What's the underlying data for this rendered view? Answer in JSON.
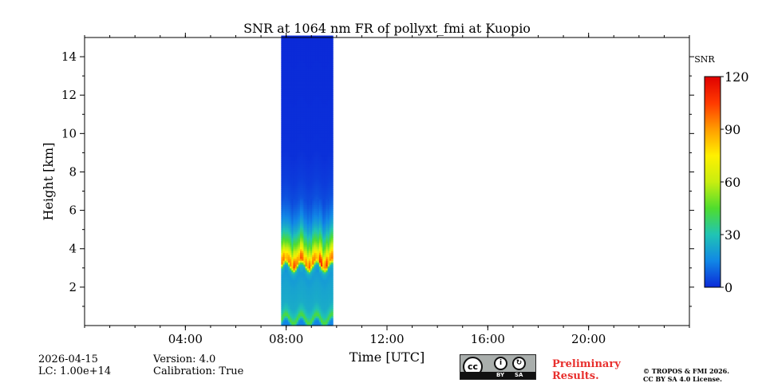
{
  "chart_data": {
    "type": "heatmap",
    "title": "SNR at 1064 nm FR of pollyxt_fmi at Kuopio",
    "xlabel": "Time [UTC]",
    "ylabel": "Height [km]",
    "x_unit": "hours UTC",
    "xlim": [
      0,
      24
    ],
    "ylim": [
      0,
      15
    ],
    "x_ticks": [
      {
        "value": 4,
        "label": "04:00"
      },
      {
        "value": 8,
        "label": "08:00"
      },
      {
        "value": 12,
        "label": "12:00"
      },
      {
        "value": 16,
        "label": "16:00"
      },
      {
        "value": 20,
        "label": "20:00"
      }
    ],
    "y_ticks": [
      {
        "value": 2,
        "label": "2"
      },
      {
        "value": 4,
        "label": "4"
      },
      {
        "value": 6,
        "label": "6"
      },
      {
        "value": 8,
        "label": "8"
      },
      {
        "value": 10,
        "label": "10"
      },
      {
        "value": 12,
        "label": "12"
      },
      {
        "value": 14,
        "label": "14"
      }
    ],
    "data_window": {
      "start_hour": 7.8,
      "end_hour": 9.85
    },
    "colorbar": {
      "label": "SNR",
      "range": [
        0,
        120
      ],
      "ticks": [
        {
          "value": 0,
          "label": "0"
        },
        {
          "value": 30,
          "label": "30"
        },
        {
          "value": 60,
          "label": "60"
        },
        {
          "value": 90,
          "label": "90"
        },
        {
          "value": 120,
          "label": "120"
        }
      ],
      "colormap": [
        "#0b2ad8",
        "#1187e6",
        "#20c4b4",
        "#4fdd2e",
        "#c8ee10",
        "#fff000",
        "#ff9d00",
        "#ff3a00",
        "#e00000"
      ]
    },
    "profile": [
      {
        "height_km": 0.0,
        "snr": 15
      },
      {
        "height_km": 0.3,
        "snr": 45
      },
      {
        "height_km": 0.6,
        "snr": 30
      },
      {
        "height_km": 1.0,
        "snr": 24
      },
      {
        "height_km": 1.5,
        "snr": 23
      },
      {
        "height_km": 2.0,
        "snr": 22
      },
      {
        "height_km": 2.5,
        "snr": 20
      },
      {
        "height_km": 2.9,
        "snr": 25
      },
      {
        "height_km": 3.2,
        "snr": 95
      },
      {
        "height_km": 3.5,
        "snr": 88
      },
      {
        "height_km": 3.8,
        "snr": 65
      },
      {
        "height_km": 4.2,
        "snr": 48
      },
      {
        "height_km": 4.6,
        "snr": 35
      },
      {
        "height_km": 5.0,
        "snr": 24
      },
      {
        "height_km": 5.5,
        "snr": 15
      },
      {
        "height_km": 6.0,
        "snr": 10
      },
      {
        "height_km": 6.5,
        "snr": 6
      },
      {
        "height_km": 7.5,
        "snr": 3
      },
      {
        "height_km": 9.0,
        "snr": 1
      },
      {
        "height_km": 15.0,
        "snr": 0
      }
    ]
  },
  "info": {
    "date": "2026-04-15",
    "lc": "LC: 1.00e+14",
    "version": "Version: 4.0",
    "calibration": "Calibration: True"
  },
  "badge": {
    "cc": "cc",
    "by": "BY",
    "sa": "SA",
    "preliminary_line1": "Preliminary",
    "preliminary_line2": "Results.",
    "copyright_line1": "© TROPOS & FMI 2026.",
    "copyright_line2": "CC BY SA 4.0 License."
  }
}
